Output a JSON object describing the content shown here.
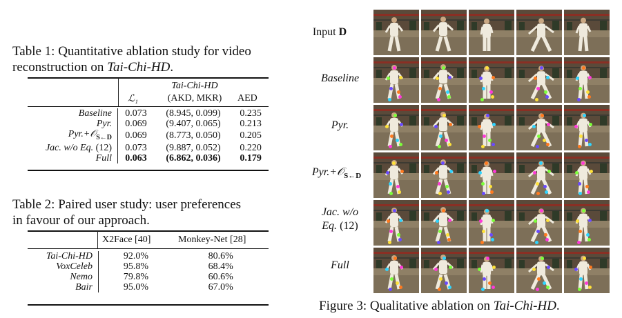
{
  "table1": {
    "caption_prefix": "Table 1: Quantitative ablation study for video",
    "caption_line2_prefix": "reconstruction on ",
    "caption_italic": "Tai-Chi-HD",
    "caption_suffix": ".",
    "headers": {
      "l1": "ℒ₁",
      "group": "Tai-Chi-HD",
      "akd_mkr": "(AKD, MKR)",
      "aed": "AED"
    },
    "rows": [
      {
        "name": "Baseline",
        "l1": "0.073",
        "akd": "(8.945, 0.099)",
        "aed": "0.235"
      },
      {
        "name": "Pyr.",
        "l1": "0.069",
        "akd": "(9.407, 0.065)",
        "aed": "0.213"
      },
      {
        "name": "Pyr.+𝒪",
        "sub": "S←D",
        "l1": "0.069",
        "akd": "(8.773, 0.050)",
        "aed": "0.205"
      },
      {
        "name": "Jac. w/o Eq.",
        "suffix": " (12)",
        "l1": "0.073",
        "akd": "(9.887, 0.052)",
        "aed": "0.220"
      },
      {
        "name": "Full",
        "l1": "0.063",
        "akd": "(6.862, 0.036)",
        "aed": "0.179"
      }
    ]
  },
  "table2": {
    "caption_line1": "Table 2: Paired user study: user preferences",
    "caption_line2": "in favour of our approach.",
    "headers": {
      "x2face": "X2Face [40]",
      "monkey": "Monkey-Net [28]"
    },
    "rows": [
      {
        "name": "Tai-Chi-HD",
        "x2face": "92.0%",
        "monkey": "80.6%"
      },
      {
        "name": "VoxCeleb",
        "x2face": "95.8%",
        "monkey": "68.4%"
      },
      {
        "name": "Nemo",
        "x2face": "79.8%",
        "monkey": "60.6%"
      },
      {
        "name": "Bair",
        "x2face": "95.0%",
        "monkey": "67.0%"
      }
    ]
  },
  "figure3": {
    "row_labels": {
      "input_prefix": "Input ",
      "input_bold": "D",
      "baseline": "Baseline",
      "pyr": "Pyr.",
      "pyr_o": "Pyr.+𝒪",
      "pyr_o_sub": "S←D",
      "jac_line1": "Jac. w/o",
      "jac_line2": "Eq.",
      "jac_line2_suffix": " (12)",
      "full": "Full"
    },
    "caption_prefix": "Figure 3: Qualitative ablation on ",
    "caption_italic": "Tai-Chi-HD",
    "caption_suffix": "."
  },
  "colors": {
    "background": "#ffffff",
    "text": "#111111",
    "keypoints": [
      "#2fd4ff",
      "#ff3ad9",
      "#7cff3a",
      "#ffe23a",
      "#6a4bff",
      "#ff7a1f"
    ]
  }
}
